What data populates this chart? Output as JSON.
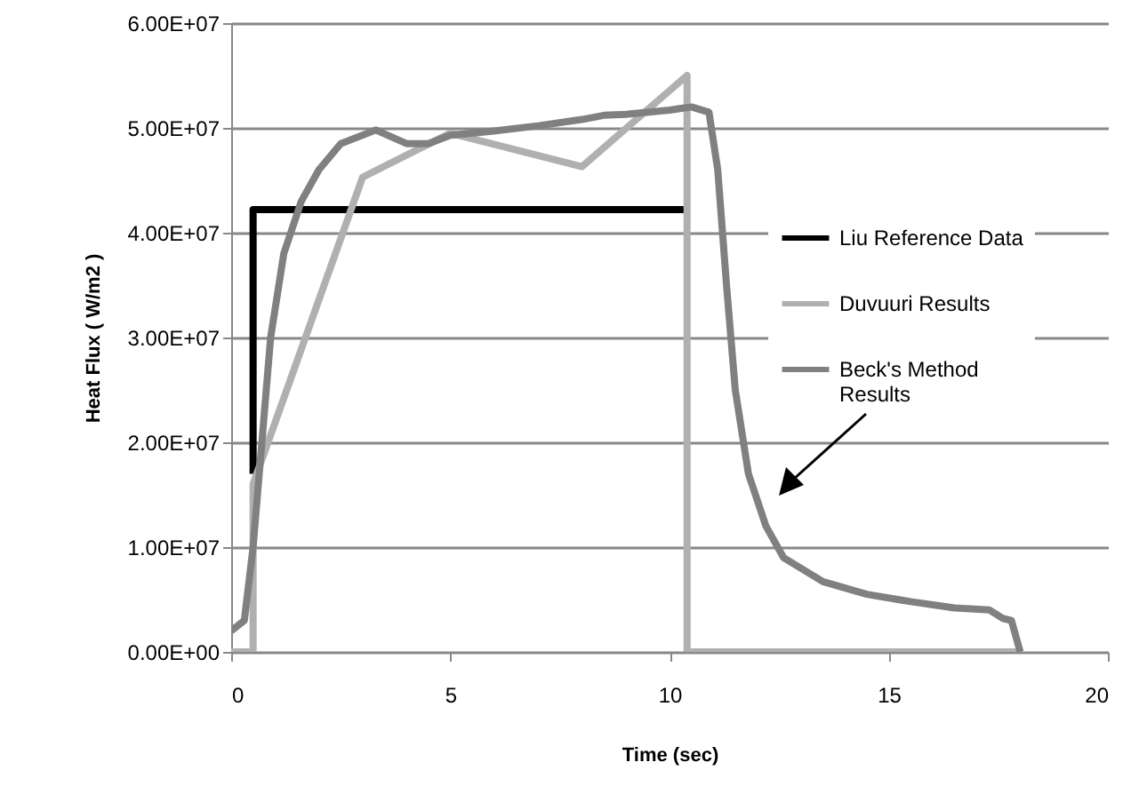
{
  "chart_data": {
    "type": "line",
    "xlabel": "Time (sec)",
    "ylabel": "Heat Flux ( W/m2 )",
    "xlim": [
      0,
      20
    ],
    "xticks": [
      0,
      5,
      10,
      15,
      20
    ],
    "ylim": [
      0,
      60000000
    ],
    "yticks": [
      {
        "value": 0,
        "label": "0.00E+00"
      },
      {
        "value": 10000000,
        "label": "1.00E+07"
      },
      {
        "value": 20000000,
        "label": "2.00E+07"
      },
      {
        "value": 30000000,
        "label": "3.00E+07"
      },
      {
        "value": 40000000,
        "label": "4.00E+07"
      },
      {
        "value": 50000000,
        "label": "5.00E+07"
      },
      {
        "value": 60000000,
        "label": "6.00E+07"
      }
    ],
    "grid": "y",
    "legend": "right",
    "marker": "none",
    "line_style": "solid",
    "series": [
      {
        "name": "Liu Reference Data",
        "color": "#000000",
        "x": [
          0.5,
          0.5,
          10.35
        ],
        "values": [
          17000000,
          42200000,
          42200000
        ]
      },
      {
        "name": "Duvuuri Results",
        "color": "#b0b0b0",
        "x": [
          0,
          0.5,
          0.5,
          3,
          5,
          8,
          10.4,
          10.4,
          18
        ],
        "values": [
          0,
          0,
          16000000,
          45300000,
          49500000,
          46300000,
          55000000,
          0,
          0
        ]
      },
      {
        "name": "Beck's Method Results",
        "color": "#808080",
        "x": [
          0,
          0.3,
          0.5,
          0.7,
          0.9,
          1.2,
          1.6,
          2,
          2.5,
          3.3,
          4,
          4.5,
          5,
          6,
          7,
          8,
          8.5,
          9,
          10,
          10.5,
          10.9,
          11.1,
          11.3,
          11.5,
          11.8,
          12.2,
          12.6,
          13.5,
          14.5,
          15.5,
          16.5,
          17.3,
          17.6,
          17.8,
          18
        ],
        "values": [
          2000000,
          3000000,
          10000000,
          20000000,
          30000000,
          38000000,
          43000000,
          46000000,
          48500000,
          49800000,
          48500000,
          48500000,
          49300000,
          49700000,
          50200000,
          50800000,
          51200000,
          51300000,
          51700000,
          52000000,
          51500000,
          46000000,
          35000000,
          25000000,
          17000000,
          12000000,
          9000000,
          6700000,
          5500000,
          4800000,
          4200000,
          4000000,
          3200000,
          3000000,
          0
        ]
      }
    ]
  }
}
